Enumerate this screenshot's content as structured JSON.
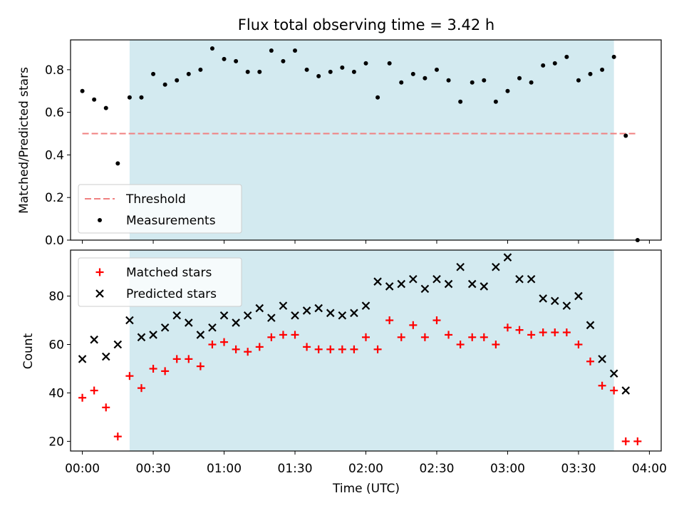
{
  "chart_data": [
    {
      "type": "scatter",
      "title": "Flux total observing time = 3.42 h",
      "ylabel": "Matched/Predicted stars",
      "xlabel": "",
      "xlim": [
        "-00:05",
        "04:05"
      ],
      "ylim": [
        0,
        0.94
      ],
      "yticks": [
        "0.0",
        "0.2",
        "0.4",
        "0.6",
        "0.8"
      ],
      "observing_window": [
        "00:20",
        "03:45"
      ],
      "observing_window_color": "#d3eaf0",
      "legend_position": "lower-left",
      "threshold": {
        "name": "Threshold",
        "value": 0.5,
        "x_range": [
          "00:00",
          "03:55"
        ],
        "color": "#f08080"
      },
      "series": [
        {
          "name": "Measurements",
          "color": "#000000",
          "marker": "dot",
          "x": [
            "00:00",
            "00:05",
            "00:10",
            "00:15",
            "00:20",
            "00:25",
            "00:30",
            "00:35",
            "00:40",
            "00:45",
            "00:50",
            "00:55",
            "01:00",
            "01:05",
            "01:10",
            "01:15",
            "01:20",
            "01:25",
            "01:30",
            "01:35",
            "01:40",
            "01:45",
            "01:50",
            "01:55",
            "02:00",
            "02:05",
            "02:10",
            "02:15",
            "02:20",
            "02:25",
            "02:30",
            "02:35",
            "02:40",
            "02:45",
            "02:50",
            "02:55",
            "03:00",
            "03:05",
            "03:10",
            "03:15",
            "03:20",
            "03:25",
            "03:30",
            "03:35",
            "03:40",
            "03:45",
            "03:50",
            "03:55"
          ],
          "y": [
            0.7,
            0.66,
            0.62,
            0.36,
            0.67,
            0.67,
            0.78,
            0.73,
            0.75,
            0.78,
            0.8,
            0.9,
            0.85,
            0.84,
            0.79,
            0.79,
            0.89,
            0.84,
            0.89,
            0.8,
            0.77,
            0.79,
            0.81,
            0.79,
            0.83,
            0.67,
            0.83,
            0.74,
            0.78,
            0.76,
            0.8,
            0.75,
            0.65,
            0.74,
            0.75,
            0.65,
            0.7,
            0.76,
            0.74,
            0.82,
            0.83,
            0.86,
            0.75,
            0.78,
            0.8,
            0.86,
            0.49,
            0.0
          ]
        }
      ]
    },
    {
      "type": "scatter",
      "title": "",
      "ylabel": "Count",
      "xlabel": "Time (UTC)",
      "xlim": [
        "-00:05",
        "04:05"
      ],
      "ylim": [
        16,
        99
      ],
      "yticks": [
        "20",
        "40",
        "60",
        "80"
      ],
      "xticks": [
        "00:00",
        "00:30",
        "01:00",
        "01:30",
        "02:00",
        "02:30",
        "03:00",
        "03:30",
        "04:00"
      ],
      "observing_window": [
        "00:20",
        "03:45"
      ],
      "observing_window_color": "#d3eaf0",
      "legend_position": "upper-left",
      "series": [
        {
          "name": "Matched stars",
          "color": "#ff0000",
          "marker": "plus",
          "x": [
            "00:00",
            "00:05",
            "00:10",
            "00:15",
            "00:20",
            "00:25",
            "00:30",
            "00:35",
            "00:40",
            "00:45",
            "00:50",
            "00:55",
            "01:00",
            "01:05",
            "01:10",
            "01:15",
            "01:20",
            "01:25",
            "01:30",
            "01:35",
            "01:40",
            "01:45",
            "01:50",
            "01:55",
            "02:00",
            "02:05",
            "02:10",
            "02:15",
            "02:20",
            "02:25",
            "02:30",
            "02:35",
            "02:40",
            "02:45",
            "02:50",
            "02:55",
            "03:00",
            "03:05",
            "03:10",
            "03:15",
            "03:20",
            "03:25",
            "03:30",
            "03:35",
            "03:40",
            "03:45",
            "03:50",
            "03:55"
          ],
          "y": [
            38,
            41,
            34,
            22,
            47,
            42,
            50,
            49,
            54,
            54,
            51,
            60,
            61,
            58,
            57,
            59,
            63,
            64,
            64,
            59,
            58,
            58,
            58,
            58,
            63,
            58,
            70,
            63,
            68,
            63,
            70,
            64,
            60,
            63,
            63,
            60,
            67,
            66,
            64,
            65,
            65,
            65,
            60,
            53,
            43,
            41,
            20,
            20
          ]
        },
        {
          "name": "Predicted stars",
          "color": "#000000",
          "marker": "x",
          "x": [
            "00:00",
            "00:05",
            "00:10",
            "00:15",
            "00:20",
            "00:25",
            "00:30",
            "00:35",
            "00:40",
            "00:45",
            "00:50",
            "00:55",
            "01:00",
            "01:05",
            "01:10",
            "01:15",
            "01:20",
            "01:25",
            "01:30",
            "01:35",
            "01:40",
            "01:45",
            "01:50",
            "01:55",
            "02:00",
            "02:05",
            "02:10",
            "02:15",
            "02:20",
            "02:25",
            "02:30",
            "02:35",
            "02:40",
            "02:45",
            "02:50",
            "02:55",
            "03:00",
            "03:05",
            "03:10",
            "03:15",
            "03:20",
            "03:25",
            "03:30",
            "03:35",
            "03:40",
            "03:45",
            "03:50"
          ],
          "y": [
            54,
            62,
            55,
            60,
            70,
            63,
            64,
            67,
            72,
            69,
            64,
            67,
            72,
            69,
            72,
            75,
            71,
            76,
            72,
            74,
            75,
            73,
            72,
            73,
            76,
            86,
            84,
            85,
            87,
            83,
            87,
            85,
            92,
            85,
            84,
            92,
            96,
            87,
            87,
            79,
            78,
            76,
            80,
            68,
            54,
            48,
            41
          ]
        }
      ]
    }
  ]
}
